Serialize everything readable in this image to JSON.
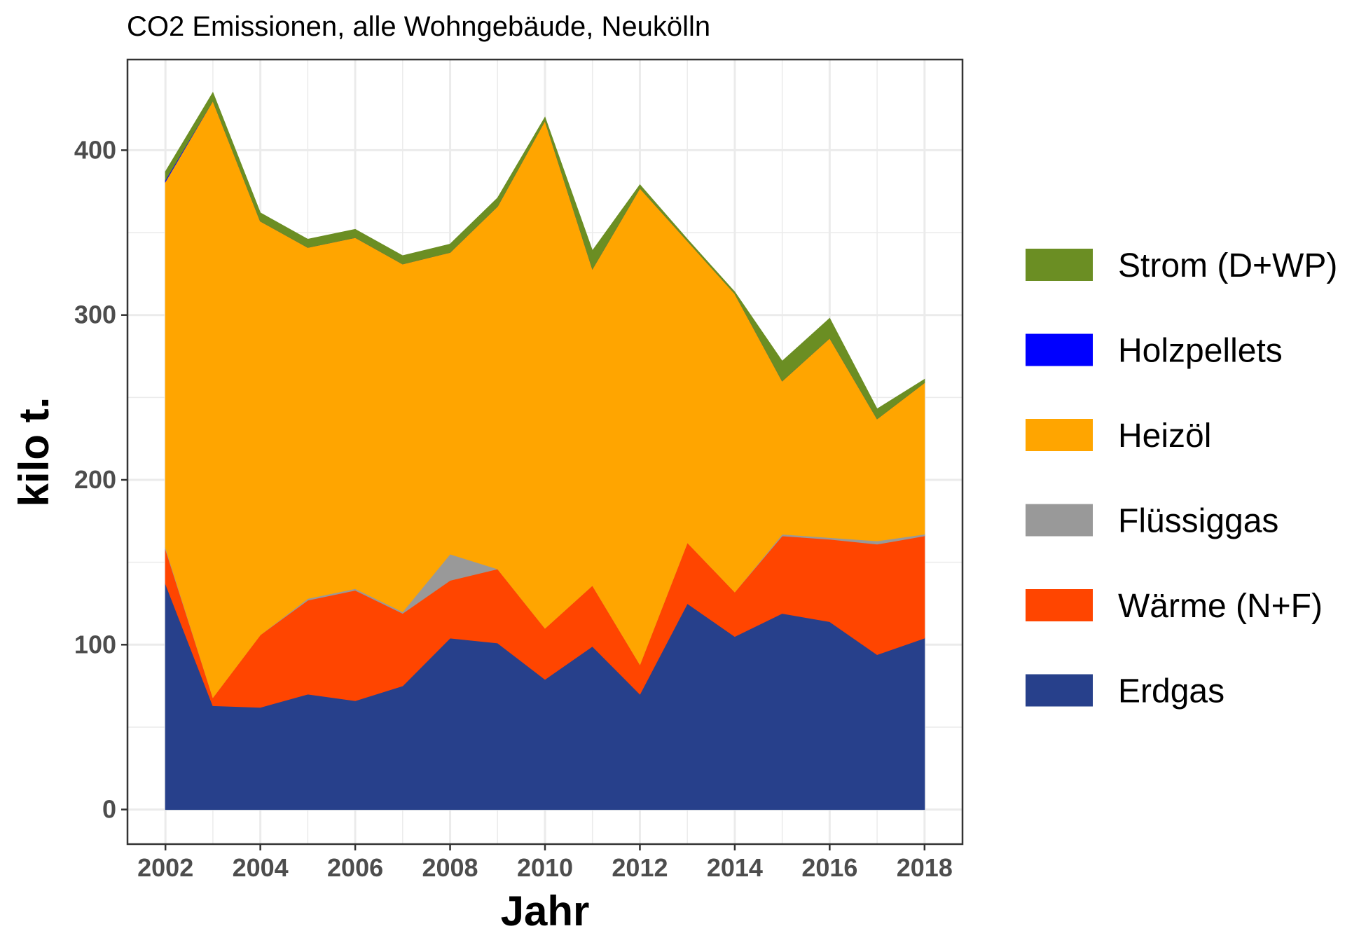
{
  "chart_data": {
    "type": "area",
    "stacked": true,
    "title": "CO2 Emissionen, alle Wohngebäude, Neukölln",
    "xlabel": "Jahr",
    "ylabel": "kilo t.",
    "xlim": [
      2001.2,
      2018.8
    ],
    "ylim": [
      -21,
      455
    ],
    "x_ticks": [
      2002,
      2004,
      2006,
      2008,
      2010,
      2012,
      2014,
      2016,
      2018
    ],
    "y_ticks": [
      0,
      100,
      200,
      300,
      400
    ],
    "grid": true,
    "legend_position": "right",
    "x": [
      2002,
      2003,
      2004,
      2005,
      2006,
      2007,
      2008,
      2009,
      2010,
      2011,
      2012,
      2013,
      2014,
      2015,
      2016,
      2017,
      2018
    ],
    "series": [
      {
        "name": "Erdgas",
        "color": "#27408b",
        "values": [
          137,
          63,
          62,
          70,
          66,
          75,
          104,
          101,
          79,
          99,
          70,
          125,
          105,
          119,
          114,
          94,
          104
        ]
      },
      {
        "name": "Wärme (N+F)",
        "color": "#ff4500",
        "values": [
          21,
          5,
          44,
          57,
          67,
          44,
          35,
          45,
          31,
          37,
          18,
          37,
          27,
          47,
          50,
          67,
          62
        ]
      },
      {
        "name": "Flüssiggas",
        "color": "#999999",
        "values": [
          1,
          0,
          0,
          1,
          1,
          1,
          16,
          0,
          0,
          0,
          0,
          0,
          0,
          1,
          1,
          2,
          1
        ]
      },
      {
        "name": "Heizöl",
        "color": "#ffa500",
        "values": [
          222,
          362,
          251,
          213,
          213,
          211,
          183,
          220,
          308,
          192,
          289,
          183,
          181,
          93,
          121,
          74,
          92
        ]
      },
      {
        "name": "Holzpellets",
        "color": "#0000ff",
        "values": [
          1,
          0,
          0,
          0,
          0,
          0,
          0,
          0,
          0,
          0,
          0,
          0,
          0,
          0,
          0,
          0,
          0
        ]
      },
      {
        "name": "Strom (D+WP)",
        "color": "#6b8e23",
        "values": [
          5,
          5,
          5,
          5,
          5,
          5,
          5,
          5,
          2,
          11,
          2,
          1,
          1,
          12,
          12,
          6,
          2
        ]
      }
    ],
    "legend_order": [
      "Strom (D+WP)",
      "Holzpellets",
      "Heizöl",
      "Flüssiggas",
      "Wärme (N+F)",
      "Erdgas"
    ]
  }
}
